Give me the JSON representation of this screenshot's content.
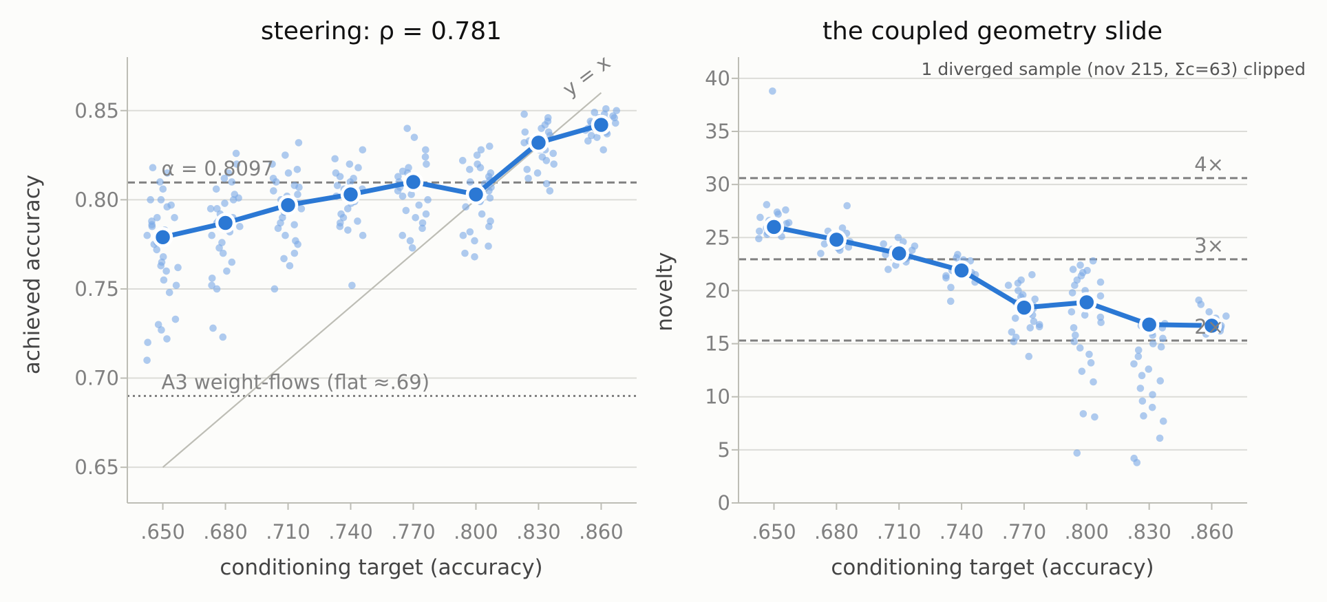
{
  "chart_data": [
    {
      "type": "scatter",
      "title": "steering: ρ = 0.781",
      "xlabel": "conditioning target (accuracy)",
      "ylabel": "achieved accuracy",
      "categories": [
        ".650",
        ".680",
        ".710",
        ".740",
        ".770",
        ".800",
        ".830",
        ".860"
      ],
      "x": [
        0.65,
        0.68,
        0.71,
        0.74,
        0.77,
        0.8,
        0.83,
        0.86
      ],
      "xlim": [
        0.633,
        0.877
      ],
      "ylim": [
        0.63,
        0.88
      ],
      "yticks": [
        0.65,
        0.7,
        0.75,
        0.8,
        0.85
      ],
      "ytick_labels": [
        "0.65",
        "0.70",
        "0.75",
        "0.80",
        "0.85"
      ],
      "grid": true,
      "series": [
        {
          "kind": "mean-line",
          "values": [
            0.779,
            0.787,
            0.797,
            0.803,
            0.81,
            0.803,
            0.832,
            0.842
          ]
        },
        {
          "kind": "samples",
          "points": [
            [
              0.818,
              0.81,
              0.806,
              0.8,
              0.797,
              0.796,
              0.79,
              0.788,
              0.785,
              0.783,
              0.78,
              0.778,
              0.776,
              0.775,
              0.772,
              0.768,
              0.765,
              0.763,
              0.762,
              0.76,
              0.755,
              0.752,
              0.748,
              0.733,
              0.73,
              0.727,
              0.722,
              0.72,
              0.71,
              0.815,
              0.8,
              0.79,
              0.786
            ],
            [
              0.826,
              0.82,
              0.815,
              0.81,
              0.806,
              0.803,
              0.8,
              0.798,
              0.795,
              0.792,
              0.79,
              0.787,
              0.785,
              0.782,
              0.78,
              0.776,
              0.773,
              0.77,
              0.765,
              0.76,
              0.756,
              0.752,
              0.75,
              0.728,
              0.723,
              0.812,
              0.801,
              0.795,
              0.788
            ],
            [
              0.832,
              0.825,
              0.82,
              0.817,
              0.815,
              0.812,
              0.81,
              0.807,
              0.805,
              0.803,
              0.8,
              0.798,
              0.796,
              0.793,
              0.79,
              0.787,
              0.784,
              0.78,
              0.777,
              0.775,
              0.77,
              0.767,
              0.763,
              0.75,
              0.808,
              0.802,
              0.795,
              0.786
            ],
            [
              0.828,
              0.823,
              0.82,
              0.818,
              0.815,
              0.813,
              0.81,
              0.808,
              0.806,
              0.804,
              0.802,
              0.8,
              0.798,
              0.795,
              0.792,
              0.79,
              0.787,
              0.785,
              0.783,
              0.78,
              0.752,
              0.812,
              0.806,
              0.799,
              0.788
            ],
            [
              0.84,
              0.835,
              0.828,
              0.824,
              0.82,
              0.818,
              0.816,
              0.813,
              0.811,
              0.809,
              0.807,
              0.805,
              0.803,
              0.8,
              0.797,
              0.794,
              0.79,
              0.787,
              0.784,
              0.78,
              0.777,
              0.773,
              0.815,
              0.81,
              0.802,
              0.792
            ],
            [
              0.83,
              0.828,
              0.825,
              0.822,
              0.82,
              0.818,
              0.815,
              0.813,
              0.811,
              0.809,
              0.807,
              0.805,
              0.803,
              0.801,
              0.799,
              0.796,
              0.792,
              0.788,
              0.785,
              0.782,
              0.78,
              0.777,
              0.774,
              0.77,
              0.768,
              0.817,
              0.81,
              0.8
            ],
            [
              0.848,
              0.846,
              0.844,
              0.842,
              0.84,
              0.838,
              0.836,
              0.834,
              0.832,
              0.83,
              0.828,
              0.826,
              0.824,
              0.822,
              0.82,
              0.817,
              0.815,
              0.812,
              0.809,
              0.805,
              0.838,
              0.833,
              0.828
            ],
            [
              0.851,
              0.85,
              0.849,
              0.848,
              0.847,
              0.846,
              0.845,
              0.844,
              0.843,
              0.842,
              0.841,
              0.84,
              0.839,
              0.838,
              0.837,
              0.836,
              0.835,
              0.833,
              0.828,
              0.846,
              0.843,
              0.84
            ]
          ]
        }
      ],
      "reference_lines": [
        {
          "kind": "dashed",
          "y": 0.8097,
          "label": "α = 0.8097"
        },
        {
          "kind": "dotted",
          "y": 0.69,
          "label": "A3 weight-flows (flat ≈.69)"
        },
        {
          "kind": "diagonal",
          "from": [
            0.65,
            0.65
          ],
          "to": [
            0.86,
            0.86
          ],
          "label": "y = x"
        }
      ],
      "colors": {
        "accent": "#2b78d4",
        "points": "#7aa8e6",
        "reference": "#808080",
        "diagonal": "#bdbdb5"
      }
    },
    {
      "type": "scatter",
      "title": "the coupled geometry slide",
      "xlabel": "conditioning target (accuracy)",
      "ylabel": "novelty",
      "categories": [
        ".650",
        ".680",
        ".710",
        ".740",
        ".770",
        ".800",
        ".830",
        ".860"
      ],
      "x": [
        0.65,
        0.68,
        0.71,
        0.74,
        0.77,
        0.8,
        0.83,
        0.86
      ],
      "xlim": [
        0.633,
        0.877
      ],
      "ylim": [
        0,
        42
      ],
      "yticks": [
        0,
        5,
        10,
        15,
        20,
        25,
        30,
        35,
        40
      ],
      "ytick_labels": [
        "0",
        "5",
        "10",
        "15",
        "20",
        "25",
        "30",
        "35",
        "40"
      ],
      "grid": true,
      "annotation": "1 diverged sample (nov 215, Σc=63) clipped",
      "series": [
        {
          "kind": "mean-line",
          "values": [
            26.0,
            24.8,
            23.5,
            21.9,
            18.4,
            18.9,
            16.8,
            16.7
          ]
        },
        {
          "kind": "samples",
          "points": [
            [
              28.1,
              27.6,
              27.2,
              26.9,
              26.6,
              26.3,
              26.1,
              25.9,
              25.7,
              25.5,
              25.3,
              25.1,
              24.9,
              26.4,
              25.8,
              38.8,
              27.4,
              26.2,
              25.6
            ],
            [
              28.0,
              25.9,
              25.6,
              25.3,
              25.0,
              24.8,
              24.6,
              24.4,
              24.2,
              24.0,
              23.8,
              23.5,
              25.4,
              24.7,
              24.1
            ],
            [
              25.0,
              24.6,
              24.2,
              23.9,
              23.6,
              23.4,
              23.2,
              23.0,
              22.7,
              22.4,
              22.0,
              24.4,
              23.8,
              23.1
            ],
            [
              23.4,
              23.1,
              22.8,
              22.5,
              22.3,
              22.1,
              21.9,
              21.7,
              21.5,
              21.2,
              20.8,
              20.3,
              19.0,
              22.9,
              22.2,
              21.4
            ],
            [
              21.5,
              21.0,
              20.5,
              20.0,
              19.6,
              19.2,
              18.9,
              18.6,
              18.3,
              18.0,
              17.7,
              17.4,
              17.1,
              16.8,
              16.5,
              16.1,
              15.6,
              15.2,
              13.8,
              20.7,
              19.4,
              17.9,
              16.6
            ],
            [
              22.8,
              22.4,
              22.0,
              21.7,
              21.4,
              21.0,
              20.5,
              20.0,
              19.5,
              19.0,
              18.5,
              18.0,
              17.5,
              17.0,
              16.5,
              15.8,
              15.2,
              14.6,
              14.0,
              13.2,
              12.4,
              11.4,
              8.4,
              8.1,
              4.7,
              21.9,
              20.8,
              19.8,
              18.8,
              17.7
            ],
            [
              17.3,
              16.9,
              16.5,
              16.1,
              15.5,
              15.0,
              14.4,
              13.8,
              13.1,
              12.6,
              12.0,
              11.5,
              10.8,
              10.2,
              9.6,
              9.0,
              8.2,
              7.7,
              6.1,
              4.2,
              3.8,
              16.7,
              15.8,
              14.7
            ],
            [
              19.1,
              18.7,
              18.0,
              17.6,
              17.2,
              16.9,
              16.7,
              16.5,
              16.3,
              16.1,
              15.9,
              17.4,
              16.8,
              16.2
            ]
          ]
        }
      ],
      "reference_lines": [
        {
          "kind": "dashed",
          "y": 30.6,
          "label": "4×"
        },
        {
          "kind": "dashed",
          "y": 22.95,
          "label": "3×"
        },
        {
          "kind": "dashed",
          "y": 15.3,
          "label": "2×"
        }
      ],
      "colors": {
        "accent": "#2b78d4",
        "points": "#7aa8e6",
        "reference": "#808080"
      }
    }
  ]
}
